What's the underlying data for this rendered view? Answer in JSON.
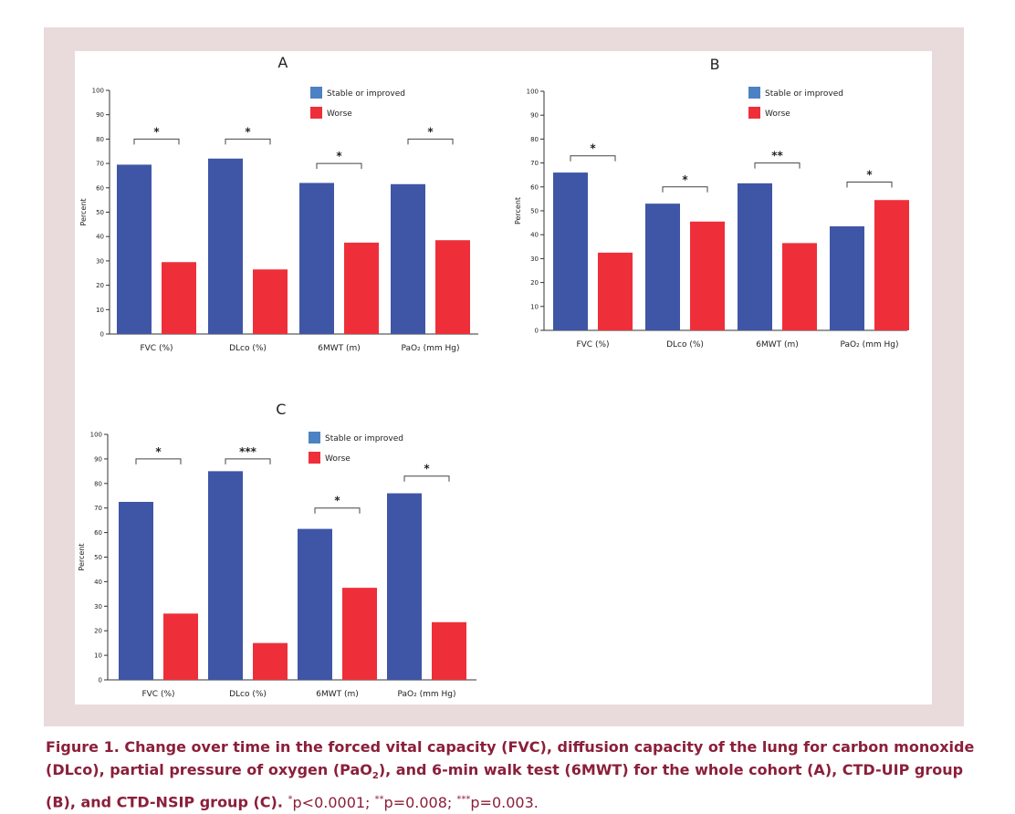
{
  "colors": {
    "stable": "#3f56a6",
    "worse": "#ee2f3a",
    "legend_stable": "#4c82c3",
    "caption": "#8b1f3a"
  },
  "legend": {
    "stable": "Stable or improved",
    "worse": "Worse"
  },
  "y_axis_label": "Percent",
  "caption": {
    "title": "Figure 1. Change over time in the forced vital capacity (FVC), diffusion capacity of the lung for carbon monoxide (DLco), partial pressure of oxygen (PaO",
    "title_sub": "2",
    "title_2": "), and 6-min walk test (6MWT) for the whole cohort (A), CTD-UIP group (B), and CTD-NSIP group (C).",
    "sig1_mark": "*",
    "sig1_text": "p<0.0001;",
    "sig2_mark": "**",
    "sig2_text": "p=0.008;",
    "sig3_mark": "***",
    "sig3_text": "p=0.003."
  },
  "chart_data": [
    {
      "type": "bar",
      "title": "A",
      "categories": [
        "FVC (%)",
        "DLco (%)",
        "6MWT (m)",
        "PaO₂ (mm Hg)"
      ],
      "series": [
        {
          "name": "Stable or improved",
          "values": [
            69.5,
            72,
            62,
            61.5
          ]
        },
        {
          "name": "Worse",
          "values": [
            29.5,
            26.5,
            37.5,
            38.5
          ]
        }
      ],
      "significance": [
        "*",
        "*",
        "*",
        "*"
      ],
      "bracket_level": [
        80,
        80,
        70,
        80
      ],
      "ylabel": "Percent",
      "ylim": [
        0,
        100
      ],
      "yticks": [
        0,
        10,
        20,
        30,
        40,
        50,
        60,
        70,
        80,
        90,
        100
      ]
    },
    {
      "type": "bar",
      "title": "B",
      "categories": [
        "FVC (%)",
        "DLco (%)",
        "6MWT (m)",
        "PaO₂ (mm Hg)"
      ],
      "series": [
        {
          "name": "Stable or improved",
          "values": [
            66,
            53,
            61.5,
            43.5
          ]
        },
        {
          "name": "Worse",
          "values": [
            32.5,
            45.5,
            36.5,
            54.5
          ]
        }
      ],
      "significance": [
        "*",
        "*",
        "**",
        "*"
      ],
      "bracket_level": [
        73,
        60,
        70,
        62
      ],
      "ylabel": "Percent",
      "ylim": [
        0,
        100
      ],
      "yticks": [
        0,
        10,
        20,
        30,
        40,
        50,
        60,
        70,
        80,
        90,
        100
      ]
    },
    {
      "type": "bar",
      "title": "C",
      "categories": [
        "FVC (%)",
        "DLco (%)",
        "6MWT (m)",
        "PaO₂ (mm Hg)"
      ],
      "series": [
        {
          "name": "Stable or improved",
          "values": [
            72.5,
            85,
            61.5,
            76
          ]
        },
        {
          "name": "Worse",
          "values": [
            27,
            15,
            37.5,
            23.5
          ]
        }
      ],
      "significance": [
        "*",
        "***",
        "*",
        "*"
      ],
      "bracket_level": [
        90,
        90,
        70,
        83
      ],
      "ylabel": "Percent",
      "ylim": [
        0,
        100
      ],
      "yticks": [
        0,
        10,
        20,
        30,
        40,
        50,
        60,
        70,
        80,
        90,
        100
      ]
    }
  ]
}
